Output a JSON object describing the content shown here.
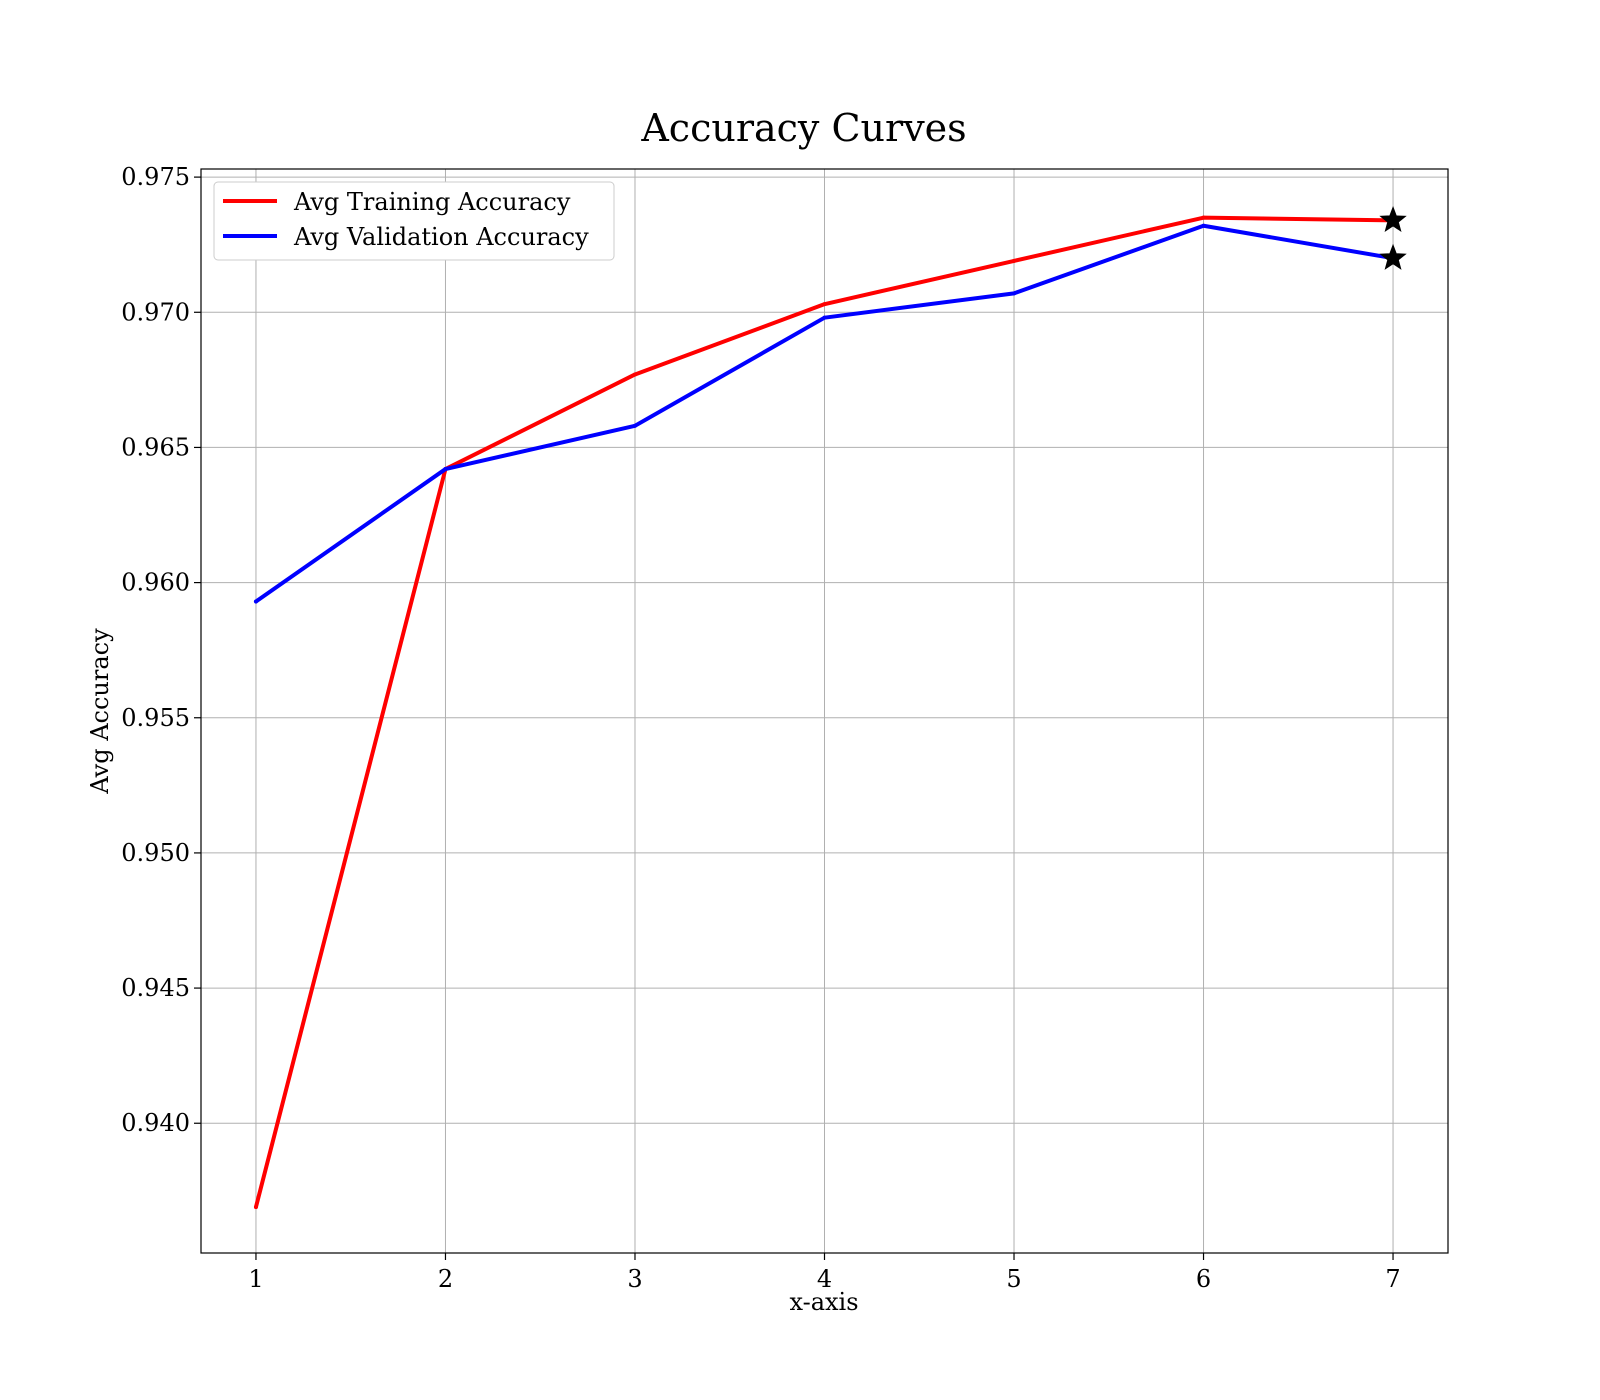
{
  "chart_data": {
    "type": "line",
    "title": "Accuracy Curves",
    "xlabel": "x-axis",
    "ylabel": "Avg Accuracy",
    "x": [
      1,
      2,
      3,
      4,
      5,
      6,
      7
    ],
    "xlim": [
      0.71,
      7.29
    ],
    "ylim": [
      0.9352,
      0.9753
    ],
    "xticks": [
      "1",
      "2",
      "3",
      "4",
      "5",
      "6",
      "7"
    ],
    "yticks": [
      "0.940",
      "0.945",
      "0.950",
      "0.955",
      "0.960",
      "0.965",
      "0.970",
      "0.975"
    ],
    "ytick_values": [
      0.94,
      0.945,
      0.95,
      0.955,
      0.96,
      0.965,
      0.97,
      0.975
    ],
    "grid": true,
    "legend_position": "top-left",
    "series": [
      {
        "name": "Avg Training Accuracy",
        "color": "#ff0000",
        "values": [
          0.9369,
          0.9642,
          0.9677,
          0.9703,
          0.9719,
          0.9735,
          0.9734
        ],
        "end_marker": "star"
      },
      {
        "name": "Avg Validation Accuracy",
        "color": "#0000ff",
        "values": [
          0.9593,
          0.9642,
          0.9658,
          0.9698,
          0.9707,
          0.9732,
          0.972
        ],
        "end_marker": "star"
      }
    ]
  }
}
